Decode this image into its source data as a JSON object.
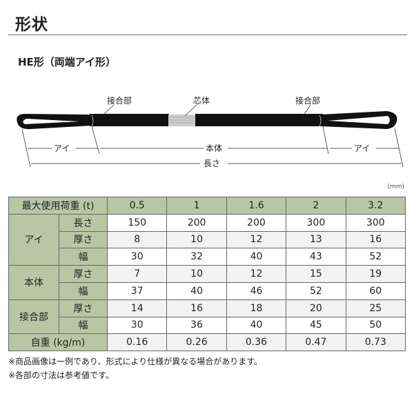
{
  "title": "形状",
  "subtitle": "HE形（両端アイ形）",
  "diagram": {
    "joint_left": "接合部",
    "core": "芯体",
    "joint_right": "接合部",
    "eye_left": "アイ",
    "body": "本体",
    "eye_right": "アイ",
    "length": "長さ"
  },
  "unit": "(mm)",
  "table": {
    "header_label": "最大使用荷重 (t)",
    "loads": [
      "0.5",
      "1",
      "1.6",
      "2",
      "3.2"
    ],
    "groups": [
      {
        "name": "アイ",
        "rows": [
          {
            "label": "長さ",
            "values": [
              "150",
              "200",
              "200",
              "300",
              "300"
            ]
          },
          {
            "label": "厚さ",
            "values": [
              "8",
              "10",
              "12",
              "13",
              "16"
            ]
          },
          {
            "label": "幅",
            "values": [
              "30",
              "32",
              "40",
              "43",
              "52"
            ]
          }
        ]
      },
      {
        "name": "本体",
        "rows": [
          {
            "label": "厚さ",
            "values": [
              "7",
              "10",
              "12",
              "15",
              "19"
            ]
          },
          {
            "label": "幅",
            "values": [
              "37",
              "40",
              "46",
              "52",
              "60"
            ]
          }
        ]
      },
      {
        "name": "接合部",
        "rows": [
          {
            "label": "厚さ",
            "values": [
              "14",
              "16",
              "18",
              "20",
              "25"
            ]
          },
          {
            "label": "幅",
            "values": [
              "30",
              "36",
              "40",
              "45",
              "50"
            ]
          }
        ]
      }
    ],
    "weight_label": "自重 (kg/m)",
    "weights": [
      "0.16",
      "0.26",
      "0.36",
      "0.47",
      "0.73"
    ]
  },
  "notes": [
    "※商品画像は一例であり、形式により仕様が異なる場合があります。",
    "※各部の寸法は参考値です。"
  ],
  "colors": {
    "header_bg": "#b9c6a4",
    "rule": "#6a6880"
  }
}
